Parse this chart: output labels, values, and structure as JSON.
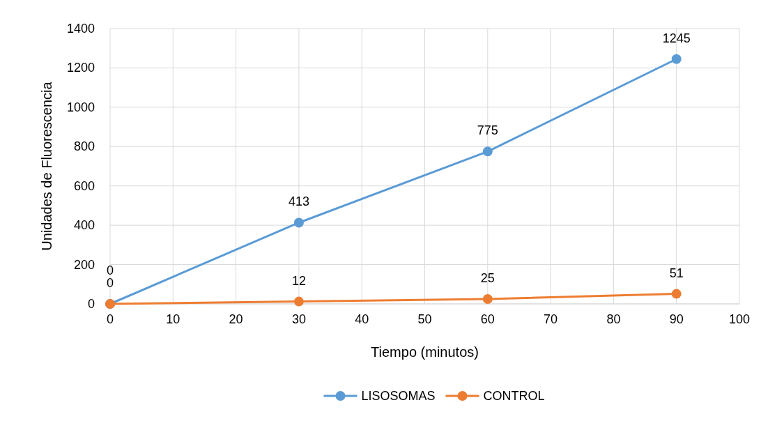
{
  "chart_data": {
    "type": "line",
    "xlabel": "Tiempo (minutos)",
    "ylabel": "Unidades de Fluorescencia",
    "x": [
      0,
      30,
      60,
      90
    ],
    "series": [
      {
        "name": "LISOSOMAS",
        "color": "#5b9bd5",
        "values": [
          0,
          413,
          775,
          1245
        ]
      },
      {
        "name": "CONTROL",
        "color": "#ed7d31",
        "values": [
          0,
          12,
          25,
          51
        ]
      }
    ],
    "xlim": [
      0,
      100
    ],
    "xticks": [
      0,
      10,
      20,
      30,
      40,
      50,
      60,
      70,
      80,
      90,
      100
    ],
    "ylim": [
      0,
      1400
    ],
    "yticks": [
      0,
      200,
      400,
      600,
      800,
      1000,
      1200,
      1400
    ],
    "grid": true,
    "legend": "bottom",
    "marker": "circle",
    "line_style": "solid",
    "data_labels": true
  }
}
